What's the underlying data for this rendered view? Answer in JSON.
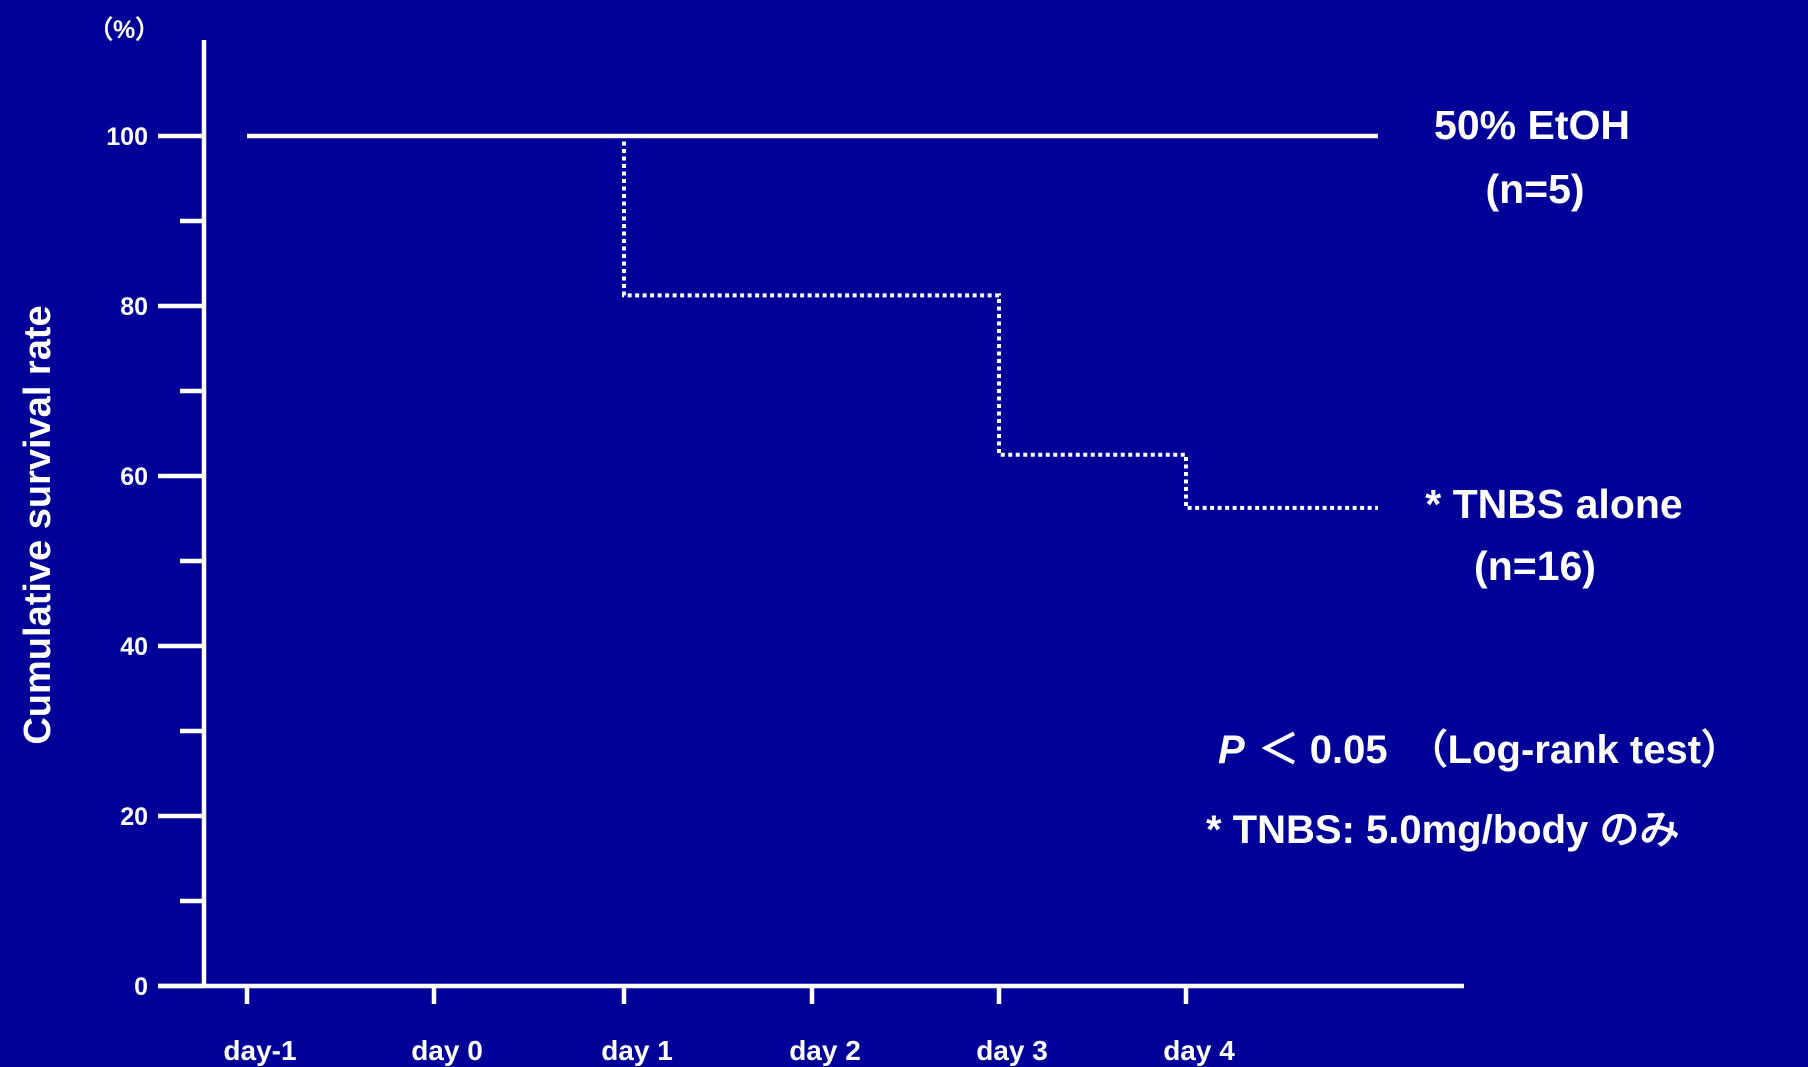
{
  "chart_data": {
    "type": "line",
    "subtype": "step",
    "ylabel": "Cumulative survival rate",
    "y_unit": "（%）",
    "ylim": [
      0,
      100
    ],
    "y_ticks": [
      0,
      20,
      40,
      60,
      80,
      100
    ],
    "y_minor_ticks": [
      10,
      30,
      50,
      70,
      90
    ],
    "categories": [
      "day-1",
      "day 0",
      "day 1",
      "day 2",
      "day 3",
      "day 4"
    ],
    "series": [
      {
        "name": "50% EtOH",
        "n_label": "(n=5)",
        "style": "solid",
        "points": [
          {
            "x": "day-1",
            "y": 100
          },
          {
            "x": "day 4",
            "y": 100
          }
        ]
      },
      {
        "name": "* TNBS alone",
        "n_label": "(n=16)",
        "style": "dotted",
        "points": [
          {
            "x": "day-1",
            "y": 100
          },
          {
            "x": "day 1",
            "y": 81.25
          },
          {
            "x": "day 3",
            "y": 62.5
          },
          {
            "x": "day 4",
            "y": 56.25
          }
        ]
      }
    ],
    "annotations": {
      "p_symbol": "P",
      "p_rest": "＜ 0.05　（Log-rank test）",
      "dose_note": "* TNBS: 5.0mg/body のみ"
    },
    "grid": false,
    "legend": "direct labels at line ends (right)",
    "colors": {
      "background": "#000099",
      "foreground": "#ffffff"
    }
  }
}
